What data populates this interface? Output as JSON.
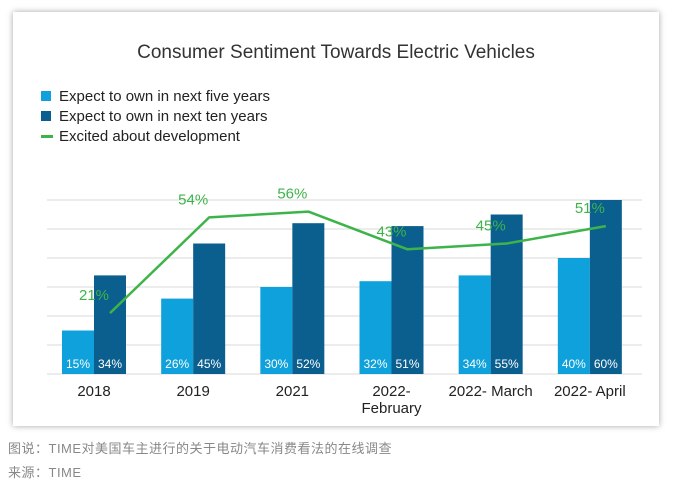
{
  "colors": {
    "five_years": "#0ea1db",
    "ten_years": "#0b5f8f",
    "excited": "#3db449"
  },
  "chart_data": {
    "type": "bar",
    "title": "Consumer Sentiment Towards Electric Vehicles",
    "categories": [
      [
        "2018"
      ],
      [
        "2019"
      ],
      [
        "2021"
      ],
      [
        "2022-",
        "February"
      ],
      [
        "2022- March"
      ],
      [
        "2022- April"
      ]
    ],
    "series": [
      {
        "name": "Expect to own in next five years",
        "kind": "bar",
        "values": [
          15,
          26,
          30,
          32,
          34,
          40
        ],
        "labels": [
          "15%",
          "26%",
          "30%",
          "32%",
          "34%",
          "40%"
        ]
      },
      {
        "name": "Expect to own in next ten years",
        "kind": "bar",
        "values": [
          34,
          45,
          52,
          51,
          55,
          60
        ],
        "labels": [
          "34%",
          "45%",
          "52%",
          "51%",
          "55%",
          "60%"
        ]
      },
      {
        "name": "Excited about development",
        "kind": "line",
        "values": [
          21,
          54,
          56,
          43,
          45,
          51
        ],
        "labels": [
          "21%",
          "54%",
          "56%",
          "43%",
          "45%",
          "51%"
        ]
      }
    ],
    "ylim": [
      0,
      60
    ],
    "grid": true,
    "legend": "top-left"
  },
  "caption": {
    "note": "图说：TIME对美国车主进行的关于电动汽车消费看法的在线调查",
    "source": "来源：TIME"
  }
}
